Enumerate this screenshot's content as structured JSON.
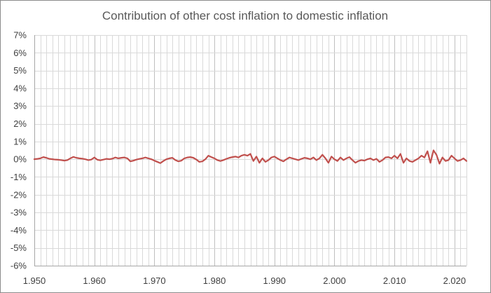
{
  "chart_data": {
    "type": "line",
    "title": "Contribution of other cost inflation to domestic inflation",
    "xlabel": "",
    "ylabel": "",
    "xlim": [
      1950,
      2022
    ],
    "ylim": [
      -6,
      7
    ],
    "x_ticks": [
      1950,
      1960,
      1970,
      1980,
      1990,
      2000,
      2010,
      2020
    ],
    "x_tick_labels": [
      "1.950",
      "1.960",
      "1.970",
      "1.980",
      "1.990",
      "2.000",
      "2.010",
      "2.020"
    ],
    "y_ticks": [
      -6,
      -5,
      -4,
      -3,
      -2,
      -1,
      0,
      1,
      2,
      3,
      4,
      5,
      6,
      7
    ],
    "y_tick_labels": [
      "-6%",
      "-5%",
      "-4%",
      "-3%",
      "-2%",
      "-1%",
      "0%",
      "1%",
      "2%",
      "3%",
      "4%",
      "5%",
      "6%",
      "7%"
    ],
    "grid": true,
    "legend": "none",
    "series": [
      {
        "color": "#c0504d",
        "points": [
          [
            1950.0,
            0.0
          ],
          [
            1950.5,
            0.02
          ],
          [
            1951.0,
            0.05
          ],
          [
            1951.5,
            0.12
          ],
          [
            1952.0,
            0.08
          ],
          [
            1952.5,
            0.02
          ],
          [
            1953.0,
            0.0
          ],
          [
            1953.5,
            -0.02
          ],
          [
            1954.0,
            -0.03
          ],
          [
            1954.5,
            -0.05
          ],
          [
            1955.0,
            -0.08
          ],
          [
            1955.5,
            -0.05
          ],
          [
            1956.0,
            0.05
          ],
          [
            1956.5,
            0.13
          ],
          [
            1957.0,
            0.08
          ],
          [
            1957.5,
            0.05
          ],
          [
            1958.0,
            0.03
          ],
          [
            1958.5,
            0.0
          ],
          [
            1959.0,
            -0.05
          ],
          [
            1959.5,
            -0.02
          ],
          [
            1960.0,
            0.1
          ],
          [
            1960.5,
            -0.03
          ],
          [
            1961.0,
            -0.06
          ],
          [
            1961.5,
            -0.02
          ],
          [
            1962.0,
            0.02
          ],
          [
            1962.5,
            0.0
          ],
          [
            1963.0,
            0.03
          ],
          [
            1963.5,
            0.1
          ],
          [
            1964.0,
            0.05
          ],
          [
            1964.5,
            0.08
          ],
          [
            1965.0,
            0.1
          ],
          [
            1965.5,
            0.05
          ],
          [
            1966.0,
            -0.12
          ],
          [
            1966.5,
            -0.08
          ],
          [
            1967.0,
            -0.02
          ],
          [
            1967.5,
            0.02
          ],
          [
            1968.0,
            0.05
          ],
          [
            1968.5,
            0.1
          ],
          [
            1969.0,
            0.05
          ],
          [
            1969.5,
            0.0
          ],
          [
            1970.0,
            -0.08
          ],
          [
            1970.5,
            -0.15
          ],
          [
            1971.0,
            -0.22
          ],
          [
            1971.5,
            -0.1
          ],
          [
            1972.0,
            0.0
          ],
          [
            1972.5,
            0.05
          ],
          [
            1973.0,
            0.08
          ],
          [
            1973.5,
            -0.05
          ],
          [
            1974.0,
            -0.12
          ],
          [
            1974.5,
            -0.08
          ],
          [
            1975.0,
            0.05
          ],
          [
            1975.5,
            0.1
          ],
          [
            1976.0,
            0.12
          ],
          [
            1976.5,
            0.08
          ],
          [
            1977.0,
            -0.02
          ],
          [
            1977.5,
            -0.15
          ],
          [
            1978.0,
            -0.12
          ],
          [
            1978.5,
            0.0
          ],
          [
            1979.0,
            0.2
          ],
          [
            1979.5,
            0.12
          ],
          [
            1980.0,
            0.05
          ],
          [
            1980.5,
            -0.05
          ],
          [
            1981.0,
            -0.1
          ],
          [
            1981.5,
            -0.05
          ],
          [
            1982.0,
            0.02
          ],
          [
            1982.5,
            0.08
          ],
          [
            1983.0,
            0.12
          ],
          [
            1983.5,
            0.15
          ],
          [
            1984.0,
            0.1
          ],
          [
            1984.5,
            0.2
          ],
          [
            1985.0,
            0.25
          ],
          [
            1985.5,
            0.2
          ],
          [
            1986.0,
            0.3
          ],
          [
            1986.5,
            -0.1
          ],
          [
            1987.0,
            0.15
          ],
          [
            1987.5,
            -0.2
          ],
          [
            1988.0,
            0.05
          ],
          [
            1988.5,
            -0.15
          ],
          [
            1989.0,
            -0.05
          ],
          [
            1989.5,
            0.1
          ],
          [
            1990.0,
            0.15
          ],
          [
            1990.5,
            0.05
          ],
          [
            1991.0,
            -0.05
          ],
          [
            1991.5,
            -0.12
          ],
          [
            1992.0,
            0.0
          ],
          [
            1992.5,
            0.1
          ],
          [
            1993.0,
            0.05
          ],
          [
            1993.5,
            0.0
          ],
          [
            1994.0,
            -0.05
          ],
          [
            1994.5,
            0.02
          ],
          [
            1995.0,
            0.08
          ],
          [
            1995.5,
            0.05
          ],
          [
            1996.0,
            0.0
          ],
          [
            1996.5,
            0.1
          ],
          [
            1997.0,
            -0.05
          ],
          [
            1997.5,
            0.05
          ],
          [
            1998.0,
            0.25
          ],
          [
            1998.5,
            0.05
          ],
          [
            1999.0,
            -0.2
          ],
          [
            1999.5,
            0.15
          ],
          [
            2000.0,
            0.0
          ],
          [
            2000.5,
            -0.1
          ],
          [
            2001.0,
            0.1
          ],
          [
            2001.5,
            -0.05
          ],
          [
            2002.0,
            0.05
          ],
          [
            2002.5,
            0.12
          ],
          [
            2003.0,
            -0.05
          ],
          [
            2003.5,
            -0.2
          ],
          [
            2004.0,
            -0.1
          ],
          [
            2004.5,
            -0.05
          ],
          [
            2005.0,
            -0.08
          ],
          [
            2005.5,
            0.0
          ],
          [
            2006.0,
            0.05
          ],
          [
            2006.5,
            -0.05
          ],
          [
            2007.0,
            0.02
          ],
          [
            2007.5,
            -0.15
          ],
          [
            2008.0,
            -0.05
          ],
          [
            2008.5,
            0.1
          ],
          [
            2009.0,
            0.12
          ],
          [
            2009.5,
            0.05
          ],
          [
            2010.0,
            0.2
          ],
          [
            2010.5,
            0.05
          ],
          [
            2011.0,
            0.3
          ],
          [
            2011.5,
            -0.2
          ],
          [
            2012.0,
            0.05
          ],
          [
            2012.5,
            -0.1
          ],
          [
            2013.0,
            -0.15
          ],
          [
            2013.5,
            -0.05
          ],
          [
            2014.0,
            0.05
          ],
          [
            2014.5,
            0.2
          ],
          [
            2015.0,
            0.1
          ],
          [
            2015.5,
            0.45
          ],
          [
            2016.0,
            -0.2
          ],
          [
            2016.5,
            0.5
          ],
          [
            2017.0,
            0.25
          ],
          [
            2017.5,
            -0.25
          ],
          [
            2018.0,
            0.1
          ],
          [
            2018.5,
            -0.1
          ],
          [
            2019.0,
            -0.05
          ],
          [
            2019.5,
            0.2
          ],
          [
            2020.0,
            0.05
          ],
          [
            2020.5,
            -0.1
          ],
          [
            2021.0,
            -0.05
          ],
          [
            2021.5,
            0.05
          ],
          [
            2022.0,
            -0.1
          ]
        ]
      }
    ]
  }
}
